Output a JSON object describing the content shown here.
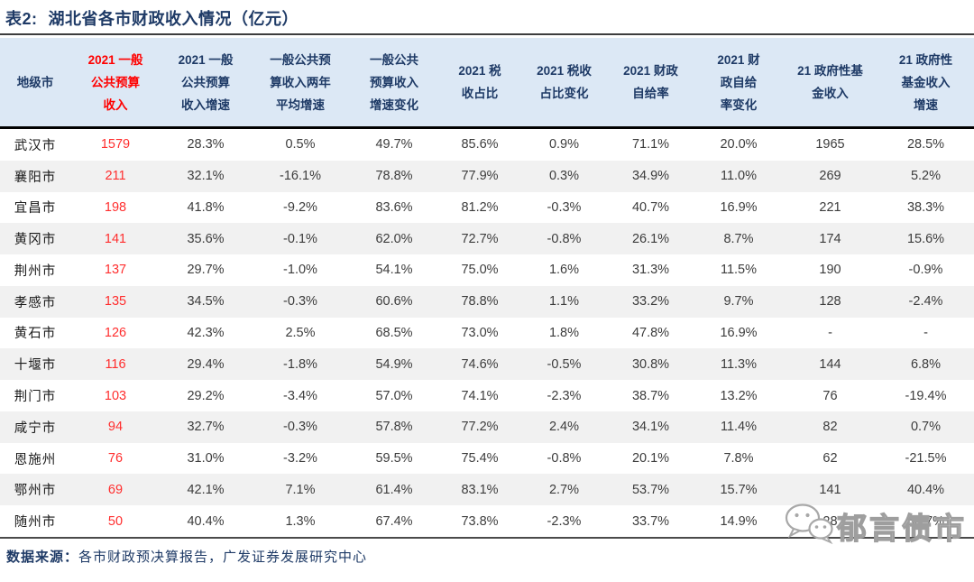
{
  "page": {
    "title_prefix": "表2:",
    "title_text": "湖北省各市财政收入情况（亿元）"
  },
  "table": {
    "columns": [
      {
        "lines": [
          "地级市"
        ],
        "highlight": false
      },
      {
        "lines": [
          "2021 一般",
          "公共预算",
          "收入"
        ],
        "highlight": true
      },
      {
        "lines": [
          "2021 一般",
          "公共预算",
          "收入增速"
        ],
        "highlight": false
      },
      {
        "lines": [
          "一般公共预",
          "算收入两年",
          "平均增速"
        ],
        "highlight": false
      },
      {
        "lines": [
          "一般公共",
          "预算收入",
          "增速变化"
        ],
        "highlight": false
      },
      {
        "lines": [
          "2021 税",
          "收占比"
        ],
        "highlight": false
      },
      {
        "lines": [
          "2021 税收",
          "占比变化"
        ],
        "highlight": false
      },
      {
        "lines": [
          "2021 财政",
          "自给率"
        ],
        "highlight": false
      },
      {
        "lines": [
          "2021 财",
          "政自给",
          "率变化"
        ],
        "highlight": false
      },
      {
        "lines": [
          "21 政府性基",
          "金收入"
        ],
        "highlight": false
      },
      {
        "lines": [
          "21 政府性",
          "基金收入",
          "增速"
        ],
        "highlight": false
      }
    ],
    "rows": [
      {
        "city": "武汉市",
        "values": [
          "1579",
          "28.3%",
          "0.5%",
          "49.7%",
          "85.6%",
          "0.9%",
          "71.1%",
          "20.0%",
          "1965",
          "28.5%"
        ]
      },
      {
        "city": "襄阳市",
        "values": [
          "211",
          "32.1%",
          "-16.1%",
          "78.8%",
          "77.9%",
          "0.3%",
          "34.9%",
          "11.0%",
          "269",
          "5.2%"
        ]
      },
      {
        "city": "宜昌市",
        "values": [
          "198",
          "41.8%",
          "-9.2%",
          "83.6%",
          "81.2%",
          "-0.3%",
          "40.7%",
          "16.9%",
          "221",
          "38.3%"
        ]
      },
      {
        "city": "黄冈市",
        "values": [
          "141",
          "35.6%",
          "-0.1%",
          "62.0%",
          "72.7%",
          "-0.8%",
          "26.1%",
          "8.7%",
          "174",
          "15.6%"
        ]
      },
      {
        "city": "荆州市",
        "values": [
          "137",
          "29.7%",
          "-1.0%",
          "54.1%",
          "75.0%",
          "1.6%",
          "31.3%",
          "11.5%",
          "190",
          "-0.9%"
        ]
      },
      {
        "city": "孝感市",
        "values": [
          "135",
          "34.5%",
          "-0.3%",
          "60.6%",
          "78.8%",
          "1.1%",
          "33.2%",
          "9.7%",
          "128",
          "-2.4%"
        ]
      },
      {
        "city": "黄石市",
        "values": [
          "126",
          "42.3%",
          "2.5%",
          "68.5%",
          "73.0%",
          "1.8%",
          "47.8%",
          "16.9%",
          "-",
          "-"
        ]
      },
      {
        "city": "十堰市",
        "values": [
          "116",
          "29.4%",
          "-1.8%",
          "54.9%",
          "74.6%",
          "-0.5%",
          "30.8%",
          "11.3%",
          "144",
          "6.8%"
        ]
      },
      {
        "city": "荆门市",
        "values": [
          "103",
          "29.2%",
          "-3.4%",
          "57.0%",
          "74.1%",
          "-2.3%",
          "38.7%",
          "13.2%",
          "76",
          "-19.4%"
        ]
      },
      {
        "city": "咸宁市",
        "values": [
          "94",
          "32.7%",
          "-0.3%",
          "57.8%",
          "77.2%",
          "2.4%",
          "34.1%",
          "11.4%",
          "82",
          "0.7%"
        ]
      },
      {
        "city": "恩施州",
        "values": [
          "76",
          "31.0%",
          "-3.2%",
          "59.5%",
          "75.4%",
          "-0.8%",
          "20.1%",
          "7.8%",
          "62",
          "-21.5%"
        ]
      },
      {
        "city": "鄂州市",
        "values": [
          "69",
          "42.1%",
          "7.1%",
          "61.4%",
          "83.1%",
          "2.7%",
          "53.7%",
          "15.7%",
          "141",
          "40.4%"
        ]
      },
      {
        "city": "随州市",
        "values": [
          "50",
          "40.4%",
          "1.3%",
          "67.4%",
          "73.8%",
          "-2.3%",
          "33.7%",
          "14.9%",
          "28",
          "53.7%"
        ]
      }
    ]
  },
  "footer": {
    "source_label": "数据来源：",
    "source_text": "各市财政预决算报告，广发证券发展研究中心"
  },
  "watermark": {
    "icon": "wechat-icon",
    "text": "郁言债市"
  },
  "colors": {
    "title_navy": "#1E3A66",
    "header_bg": "#DCE8F5",
    "header_red": "#FF0000",
    "body_red": "#FF2E2E",
    "body_text": "#3C3C3C",
    "zebra_stripe": "#F1F1F1"
  }
}
